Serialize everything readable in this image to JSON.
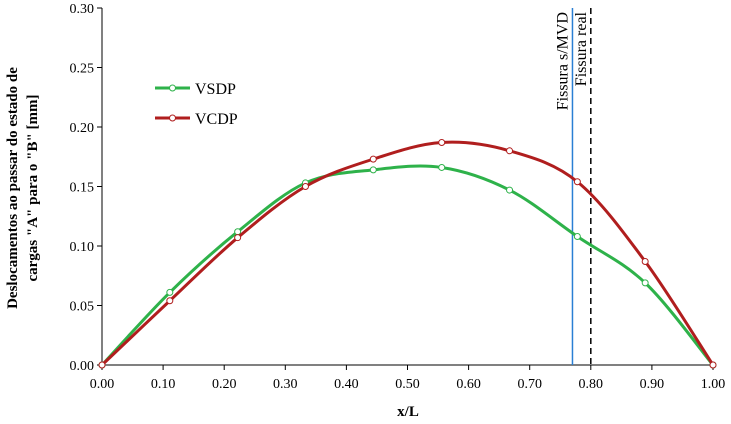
{
  "chart_data": {
    "type": "line",
    "title": "",
    "xlabel": "x/L",
    "ylabel": "Deslocamentos ao passar do estado de cargas \"A\" para o \"B\" [mm]",
    "ylabel_lines": [
      "Deslocamentos ao passar do estado de",
      "cargas \"A\" para o \"B\" [mm]"
    ],
    "xlim": [
      0.0,
      1.0
    ],
    "ylim": [
      0.0,
      0.3
    ],
    "x_ticks": [
      0.0,
      0.1,
      0.2,
      0.3,
      0.4,
      0.5,
      0.6,
      0.7,
      0.8,
      0.9,
      1.0
    ],
    "y_ticks": [
      0.0,
      0.05,
      0.1,
      0.15,
      0.2,
      0.25,
      0.3
    ],
    "x_tick_labels": [
      "0.00",
      "0.10",
      "0.20",
      "0.30",
      "0.40",
      "0.50",
      "0.60",
      "0.70",
      "0.80",
      "0.90",
      "1.00"
    ],
    "y_tick_labels": [
      "0.00",
      "0.05",
      "0.10",
      "0.15",
      "0.20",
      "0.25",
      "0.30"
    ],
    "grid": false,
    "legend_position": "upper-left",
    "series": [
      {
        "name": "VSDP",
        "color": "#2eb24a",
        "x": [
          0.0,
          0.111,
          0.222,
          0.333,
          0.444,
          0.556,
          0.667,
          0.778,
          0.889,
          1.0
        ],
        "y": [
          0.0,
          0.061,
          0.112,
          0.153,
          0.164,
          0.166,
          0.147,
          0.108,
          0.069,
          0.0
        ]
      },
      {
        "name": "VCDP",
        "color": "#b01e1e",
        "x": [
          0.0,
          0.111,
          0.222,
          0.333,
          0.444,
          0.556,
          0.667,
          0.778,
          0.889,
          1.0
        ],
        "y": [
          0.0,
          0.054,
          0.107,
          0.15,
          0.173,
          0.187,
          0.18,
          0.154,
          0.087,
          0.0
        ]
      }
    ],
    "vertical_lines": [
      {
        "x": 0.77,
        "label": "Fissura s/MVD",
        "color": "#2a7fd4",
        "style": "solid"
      },
      {
        "x": 0.8,
        "label": "Fissura real",
        "color": "#000000",
        "style": "dashed"
      }
    ]
  }
}
